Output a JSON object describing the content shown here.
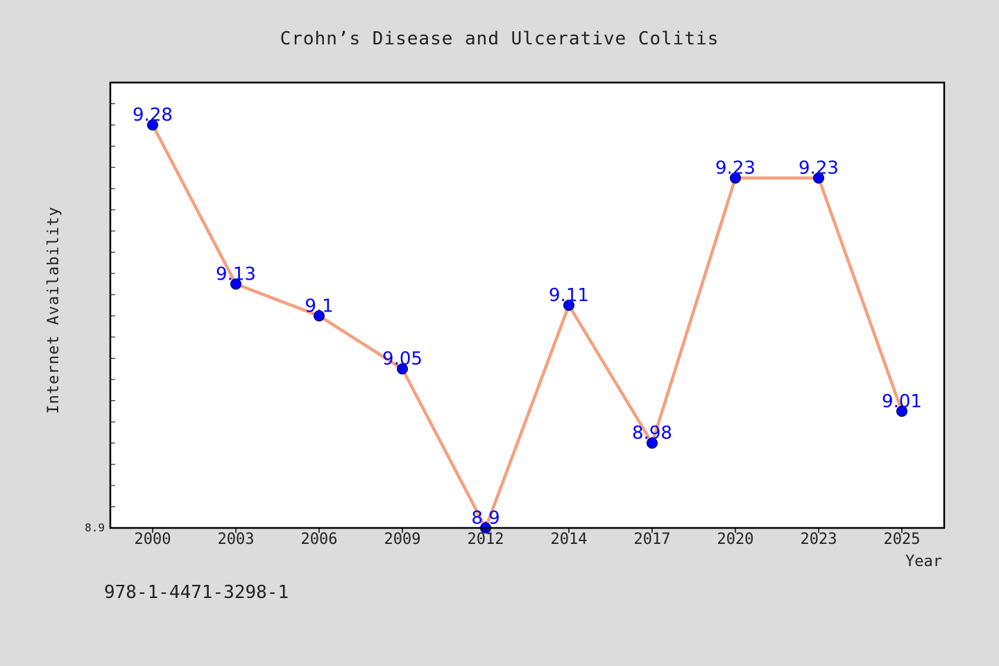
{
  "chart_data": {
    "type": "line",
    "title": "Crohn’s Disease and Ulcerative Colitis",
    "xlabel": "Year",
    "ylabel": "Internet Availability",
    "categories": [
      "2000",
      "2003",
      "2006",
      "2009",
      "2012",
      "2014",
      "2017",
      "2020",
      "2023",
      "2025"
    ],
    "series": [
      {
        "values": [
          9.28,
          9.13,
          9.1,
          9.05,
          8.9,
          9.11,
          8.98,
          9.23,
          9.23,
          9.01
        ],
        "data_labels": [
          "9.28",
          "9.13",
          "9.1",
          "9.05",
          "8.9",
          "9.11",
          "8.98",
          "9.23",
          "9.23",
          "9.01"
        ]
      }
    ],
    "ytick_labels": [
      "8.9"
    ],
    "ylim": [
      8.9,
      9.32
    ],
    "minor_tick_step": 0.02,
    "grid": false,
    "legend": "none",
    "colors": {
      "line": "#f4a07e",
      "marker": "#0000ff",
      "marker_edge": "#000033",
      "data_label": "#0000ff",
      "background": "#dcdcdc",
      "plot_background": "#ffffff",
      "frame": "#000000",
      "text": "#222222"
    }
  },
  "footnote": "978-1-4471-3298-1"
}
